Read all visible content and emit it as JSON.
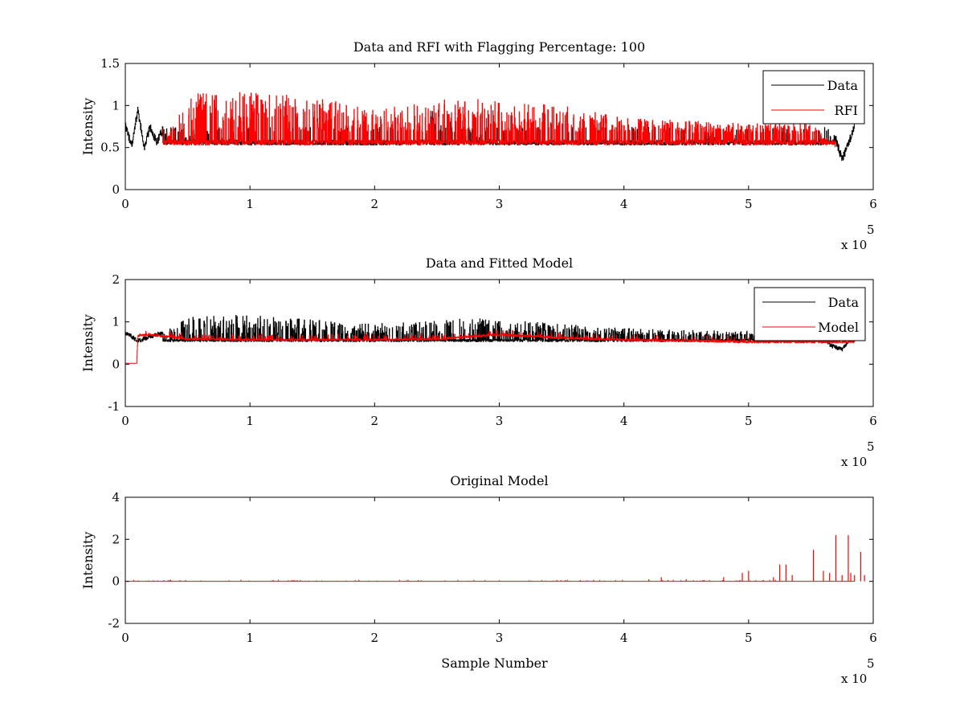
{
  "figure": {
    "colors": {
      "data": "#000000",
      "rfi": "#ff0000",
      "model": "#ff0000",
      "background": "#ffffff"
    }
  },
  "chart_data": [
    {
      "type": "line",
      "title": "Data and RFI with Flagging Percentage: 100",
      "xlabel": "",
      "ylabel": "Intensity",
      "xlim": [
        0,
        600000
      ],
      "ylim": [
        0,
        1.5
      ],
      "x_ticks": [
        "0",
        "1",
        "2",
        "3",
        "4",
        "5",
        "6"
      ],
      "y_ticks": [
        "0",
        "0.5",
        "1",
        "1.5"
      ],
      "x_exponent_base": "x 10",
      "x_exponent_power": "5",
      "legend": {
        "placement": "top-right",
        "entries": [
          "Data",
          "RFI"
        ]
      },
      "series": [
        {
          "name": "Data",
          "color": "#000000",
          "x": [
            0,
            5000,
            10000,
            15000,
            20000,
            25000,
            30000,
            40000,
            60000,
            100000,
            200000,
            240000,
            245000,
            300000,
            400000,
            450000,
            470000,
            500000,
            550000,
            570000,
            575000,
            580000,
            585000
          ],
          "y": [
            0.75,
            0.52,
            0.95,
            0.5,
            0.75,
            0.55,
            0.72,
            0.55,
            0.72,
            0.55,
            0.53,
            0.6,
            0.95,
            0.55,
            0.55,
            0.53,
            0.7,
            0.55,
            0.55,
            0.6,
            0.35,
            0.55,
            0.75
          ]
        },
        {
          "name": "RFI",
          "color": "#ff0000",
          "x": [
            30000,
            50000,
            65000,
            108000,
            147000,
            200000,
            247000,
            270000,
            300000,
            350000,
            400000,
            450000,
            500000,
            550000,
            570000
          ],
          "y": [
            0.53,
            1.1,
            1.18,
            1.15,
            1.12,
            0.95,
            1.05,
            1.1,
            1.05,
            1.0,
            0.85,
            0.82,
            0.78,
            0.8,
            0.5
          ]
        }
      ]
    },
    {
      "type": "line",
      "title": "Data and Fitted Model",
      "xlabel": "",
      "ylabel": "Intensity",
      "xlim": [
        0,
        600000
      ],
      "ylim": [
        -1,
        2
      ],
      "x_ticks": [
        "0",
        "1",
        "2",
        "3",
        "4",
        "5",
        "6"
      ],
      "y_ticks": [
        "-1",
        "0",
        "1",
        "2"
      ],
      "x_exponent_base": "x 10",
      "x_exponent_power": "5",
      "legend": {
        "placement": "top-right",
        "entries": [
          "Data",
          "Model"
        ]
      },
      "series": [
        {
          "name": "Data",
          "color": "#000000",
          "x": [
            0,
            10000,
            30000,
            50000,
            65000,
            100000,
            200000,
            250000,
            270000,
            300000,
            400000,
            450000,
            500000,
            550000,
            575000,
            585000
          ],
          "y": [
            0.75,
            0.55,
            0.75,
            1.1,
            1.18,
            1.15,
            0.95,
            1.05,
            1.1,
            1.05,
            0.85,
            0.8,
            0.78,
            0.6,
            0.35,
            0.75
          ]
        },
        {
          "name": "Model",
          "color": "#ff0000",
          "x": [
            0,
            9000,
            10000,
            20000,
            50000,
            100000,
            200000,
            250000,
            300000,
            350000,
            400000,
            450000,
            500000,
            550000,
            585000
          ],
          "y": [
            0.02,
            0.02,
            0.7,
            0.72,
            0.62,
            0.6,
            0.6,
            0.62,
            0.72,
            0.65,
            0.6,
            0.58,
            0.55,
            0.55,
            0.55
          ]
        }
      ]
    },
    {
      "type": "line",
      "title": "Original Model",
      "xlabel": "Sample Number",
      "ylabel": "Intensity",
      "xlim": [
        0,
        600000
      ],
      "ylim": [
        -2,
        4
      ],
      "x_ticks": [
        "0",
        "1",
        "2",
        "3",
        "4",
        "5",
        "6"
      ],
      "y_ticks": [
        "-2",
        "0",
        "2",
        "4"
      ],
      "x_exponent_base": "x 10",
      "x_exponent_power": "5",
      "baseline": 0,
      "series": [
        {
          "name": "",
          "color": "#ff0000",
          "spikes_x": [
            300000,
            420000,
            430000,
            450000,
            480000,
            495000,
            500000,
            520000,
            525000,
            530000,
            535000,
            552000,
            560000,
            565000,
            570000,
            575000,
            580000,
            582000,
            585000,
            590000,
            593000
          ],
          "spikes_y": [
            0.05,
            0.1,
            0.2,
            0.1,
            0.2,
            0.4,
            0.5,
            0.2,
            0.8,
            0.8,
            0.3,
            1.5,
            0.5,
            0.4,
            2.2,
            0.3,
            2.2,
            0.4,
            0.3,
            1.4,
            0.3
          ]
        }
      ]
    }
  ]
}
